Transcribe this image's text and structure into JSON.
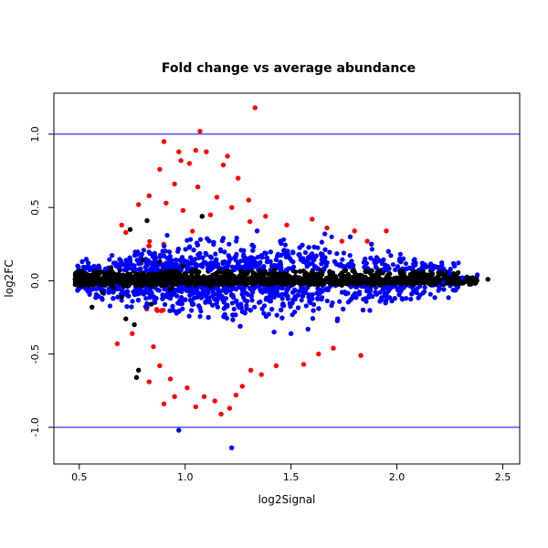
{
  "chart_data": {
    "type": "scatter",
    "title": "Fold change vs average abundance",
    "xlabel": "log2Signal",
    "ylabel": "log2FC",
    "xlim": [
      0.38,
      2.58
    ],
    "ylim": [
      -1.25,
      1.28
    ],
    "xticks": [
      0.5,
      1.0,
      1.5,
      2.0,
      2.5
    ],
    "xtick_labels": [
      "0.5",
      "1.0",
      "1.5",
      "2.0",
      "2.5"
    ],
    "yticks": [
      -1.0,
      -0.5,
      0.0,
      0.5,
      1.0
    ],
    "ytick_labels": [
      "-1.0",
      "-0.5",
      "0.0",
      "0.5",
      "1.0"
    ],
    "reference_lines": {
      "y": [
        1.0,
        -1.0
      ],
      "color": "#0000ff"
    },
    "grid": false,
    "colors": {
      "not_significant": "#000000",
      "small_change": "#0000ff",
      "large_change": "#ff0000"
    },
    "series": [
      {
        "color": "#ff0000",
        "points": [
          [
            1.33,
            1.18
          ],
          [
            1.07,
            1.02
          ],
          [
            0.9,
            0.95
          ],
          [
            0.97,
            0.88
          ],
          [
            1.05,
            0.89
          ],
          [
            1.1,
            0.88
          ],
          [
            1.2,
            0.85
          ],
          [
            0.98,
            0.82
          ],
          [
            1.18,
            0.79
          ],
          [
            0.88,
            0.76
          ],
          [
            1.02,
            0.8
          ],
          [
            1.25,
            0.7
          ],
          [
            0.95,
            0.66
          ],
          [
            1.06,
            0.64
          ],
          [
            0.83,
            0.58
          ],
          [
            0.91,
            0.53
          ],
          [
            1.15,
            0.57
          ],
          [
            1.3,
            0.55
          ],
          [
            0.78,
            0.52
          ],
          [
            1.22,
            0.5
          ],
          [
            0.99,
            0.48
          ],
          [
            1.12,
            0.45
          ],
          [
            1.38,
            0.44
          ],
          [
            1.6,
            0.42
          ],
          [
            1.67,
            0.36
          ],
          [
            1.8,
            0.34
          ],
          [
            1.95,
            0.34
          ],
          [
            0.7,
            0.38
          ],
          [
            0.72,
            0.33
          ],
          [
            1.48,
            0.38
          ],
          [
            1.74,
            0.27
          ],
          [
            1.86,
            0.27
          ],
          [
            0.85,
            -0.45
          ],
          [
            0.88,
            -0.58
          ],
          [
            0.93,
            -0.67
          ],
          [
            1.01,
            -0.73
          ],
          [
            1.09,
            -0.79
          ],
          [
            1.14,
            -0.82
          ],
          [
            1.21,
            -0.87
          ],
          [
            0.83,
            -0.69
          ],
          [
            0.9,
            -0.84
          ],
          [
            1.05,
            -0.86
          ],
          [
            1.17,
            -0.91
          ],
          [
            0.95,
            -0.79
          ],
          [
            1.27,
            -0.72
          ],
          [
            1.36,
            -0.64
          ],
          [
            1.43,
            -0.58
          ],
          [
            1.56,
            -0.57
          ],
          [
            1.63,
            -0.5
          ],
          [
            1.7,
            -0.46
          ],
          [
            1.83,
            -0.51
          ],
          [
            0.68,
            -0.43
          ],
          [
            0.75,
            -0.36
          ],
          [
            1.24,
            -0.78
          ],
          [
            1.31,
            -0.61
          ]
        ]
      },
      {
        "color": "#0000ff",
        "points": [
          [
            2.38,
            0.04
          ],
          [
            2.31,
            0.02
          ],
          [
            2.25,
            0.05
          ],
          [
            2.22,
            -0.01
          ],
          [
            2.2,
            -0.04
          ],
          [
            2.17,
            0.08
          ],
          [
            2.12,
            0.12
          ],
          [
            2.07,
            -0.09
          ],
          [
            2.03,
            0.15
          ],
          [
            1.99,
            -0.12
          ],
          [
            1.96,
            0.2
          ],
          [
            1.92,
            -0.14
          ],
          [
            1.88,
            0.25
          ],
          [
            1.84,
            -0.2
          ],
          [
            1.78,
            0.3
          ],
          [
            1.72,
            -0.26
          ],
          [
            1.66,
            0.32
          ],
          [
            1.58,
            -0.33
          ],
          [
            1.5,
            -0.36
          ],
          [
            1.42,
            -0.35
          ],
          [
            1.34,
            0.34
          ],
          [
            1.26,
            -0.31
          ],
          [
            1.18,
            0.29
          ],
          [
            1.11,
            -0.25
          ],
          [
            1.04,
            0.21
          ],
          [
            0.97,
            -0.21
          ],
          [
            0.9,
            0.17
          ],
          [
            0.82,
            -0.18
          ],
          [
            0.74,
            0.14
          ],
          [
            0.66,
            -0.12
          ],
          [
            0.59,
            0.09
          ],
          [
            0.54,
            -0.07
          ],
          [
            1.45,
            0.27
          ],
          [
            1.61,
            0.23
          ],
          [
            1.29,
            -0.19
          ],
          [
            0.93,
            -0.12
          ],
          [
            0.97,
            -1.02
          ],
          [
            1.22,
            -1.14
          ]
        ]
      },
      {
        "color": "#000000",
        "points": [
          [
            2.43,
            0.01
          ],
          [
            2.26,
            0.01
          ],
          [
            2.18,
            -0.02
          ],
          [
            2.1,
            0.03
          ],
          [
            0.48,
            0.01
          ],
          [
            0.52,
            -0.03
          ],
          [
            0.57,
            0.06
          ],
          [
            0.61,
            -0.08
          ],
          [
            0.65,
            0.09
          ],
          [
            0.7,
            -0.11
          ],
          [
            0.74,
            0.35
          ],
          [
            0.76,
            -0.3
          ],
          [
            0.8,
            0.14
          ],
          [
            0.84,
            -0.16
          ],
          [
            0.88,
            0.13
          ],
          [
            0.93,
            -0.06
          ],
          [
            0.99,
            0.1
          ],
          [
            1.05,
            0.07
          ],
          [
            1.12,
            -0.04
          ],
          [
            1.2,
            0.06
          ],
          [
            1.28,
            0.03
          ],
          [
            1.36,
            -0.02
          ],
          [
            1.44,
            0.02
          ],
          [
            1.52,
            0.03
          ],
          [
            1.6,
            -0.01
          ],
          [
            1.68,
            0.02
          ],
          [
            1.76,
            -0.02
          ],
          [
            1.84,
            0.01
          ],
          [
            1.92,
            -0.03
          ],
          [
            2.0,
            0.02
          ],
          [
            0.82,
            0.41
          ],
          [
            0.78,
            -0.61
          ],
          [
            0.77,
            -0.66
          ],
          [
            0.56,
            -0.18
          ],
          [
            0.72,
            -0.26
          ],
          [
            1.08,
            0.44
          ]
        ]
      }
    ]
  }
}
